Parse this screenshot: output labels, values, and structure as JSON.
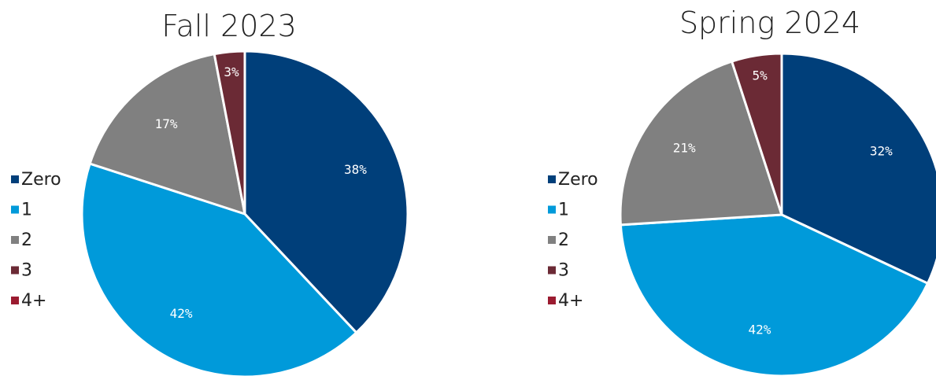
{
  "chart_data": [
    {
      "type": "pie",
      "title": "Fall 2023",
      "categories": [
        "Zero",
        "1",
        "2",
        "3",
        "4+"
      ],
      "values": [
        38,
        42,
        17,
        3,
        0
      ],
      "value_labels": [
        "38%",
        "42%",
        "17%",
        "3%",
        null
      ],
      "colors": [
        "#003f7a",
        "#009ada",
        "#808080",
        "#6b2a35",
        "#9b1b30"
      ]
    },
    {
      "type": "pie",
      "title": "Spring 2024",
      "categories": [
        "Zero",
        "1",
        "2",
        "3",
        "4+"
      ],
      "values": [
        32,
        42,
        21,
        5,
        0
      ],
      "value_labels": [
        "32%",
        "42%",
        "21%",
        "5%",
        null
      ],
      "colors": [
        "#003f7a",
        "#009ada",
        "#808080",
        "#6b2a35",
        "#9b1b30"
      ]
    }
  ]
}
